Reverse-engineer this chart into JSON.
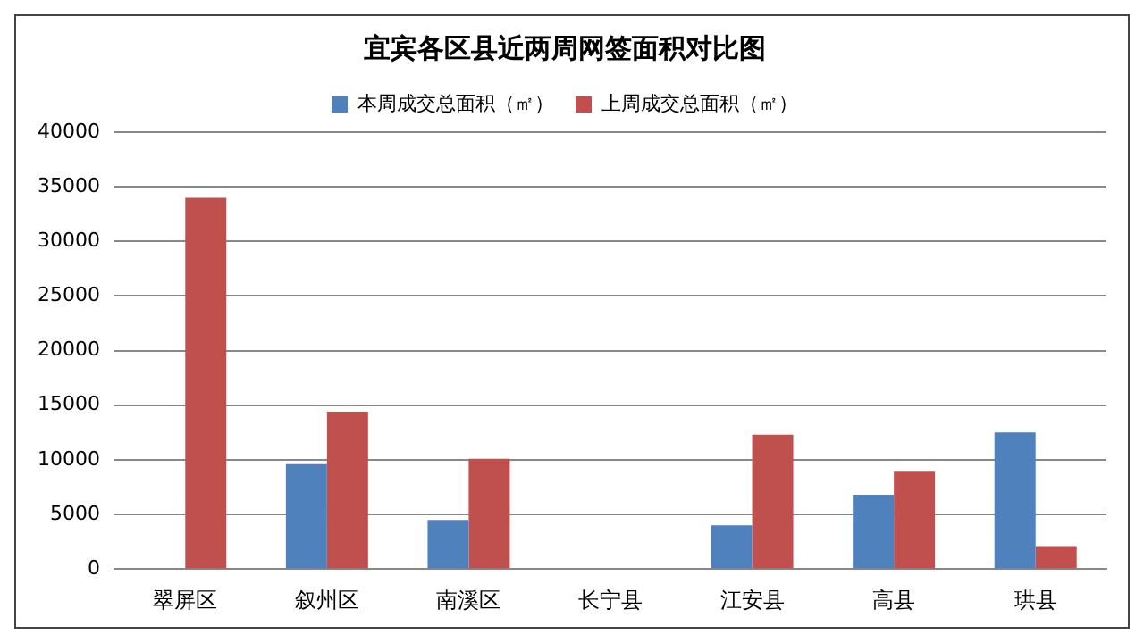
{
  "chart_data": {
    "type": "bar",
    "title": "宜宾各区县近两周网签面积对比图",
    "categories": [
      "翠屏区",
      "叙州区",
      "南溪区",
      "长宁县",
      "江安县",
      "高县",
      "珙县"
    ],
    "series": [
      {
        "name": "本周成交总面积（㎡）",
        "color": "#4f81bd",
        "values": [
          0,
          9600,
          4500,
          0,
          4000,
          6800,
          12500
        ]
      },
      {
        "name": "上周成交总面积（㎡）",
        "color": "#c0504d",
        "values": [
          34000,
          14400,
          10100,
          0,
          12300,
          9000,
          2100
        ]
      }
    ],
    "ylim": [
      0,
      40000
    ],
    "yticks": [
      0,
      5000,
      10000,
      15000,
      20000,
      25000,
      30000,
      35000,
      40000
    ],
    "grid": "y",
    "legend": "top"
  }
}
